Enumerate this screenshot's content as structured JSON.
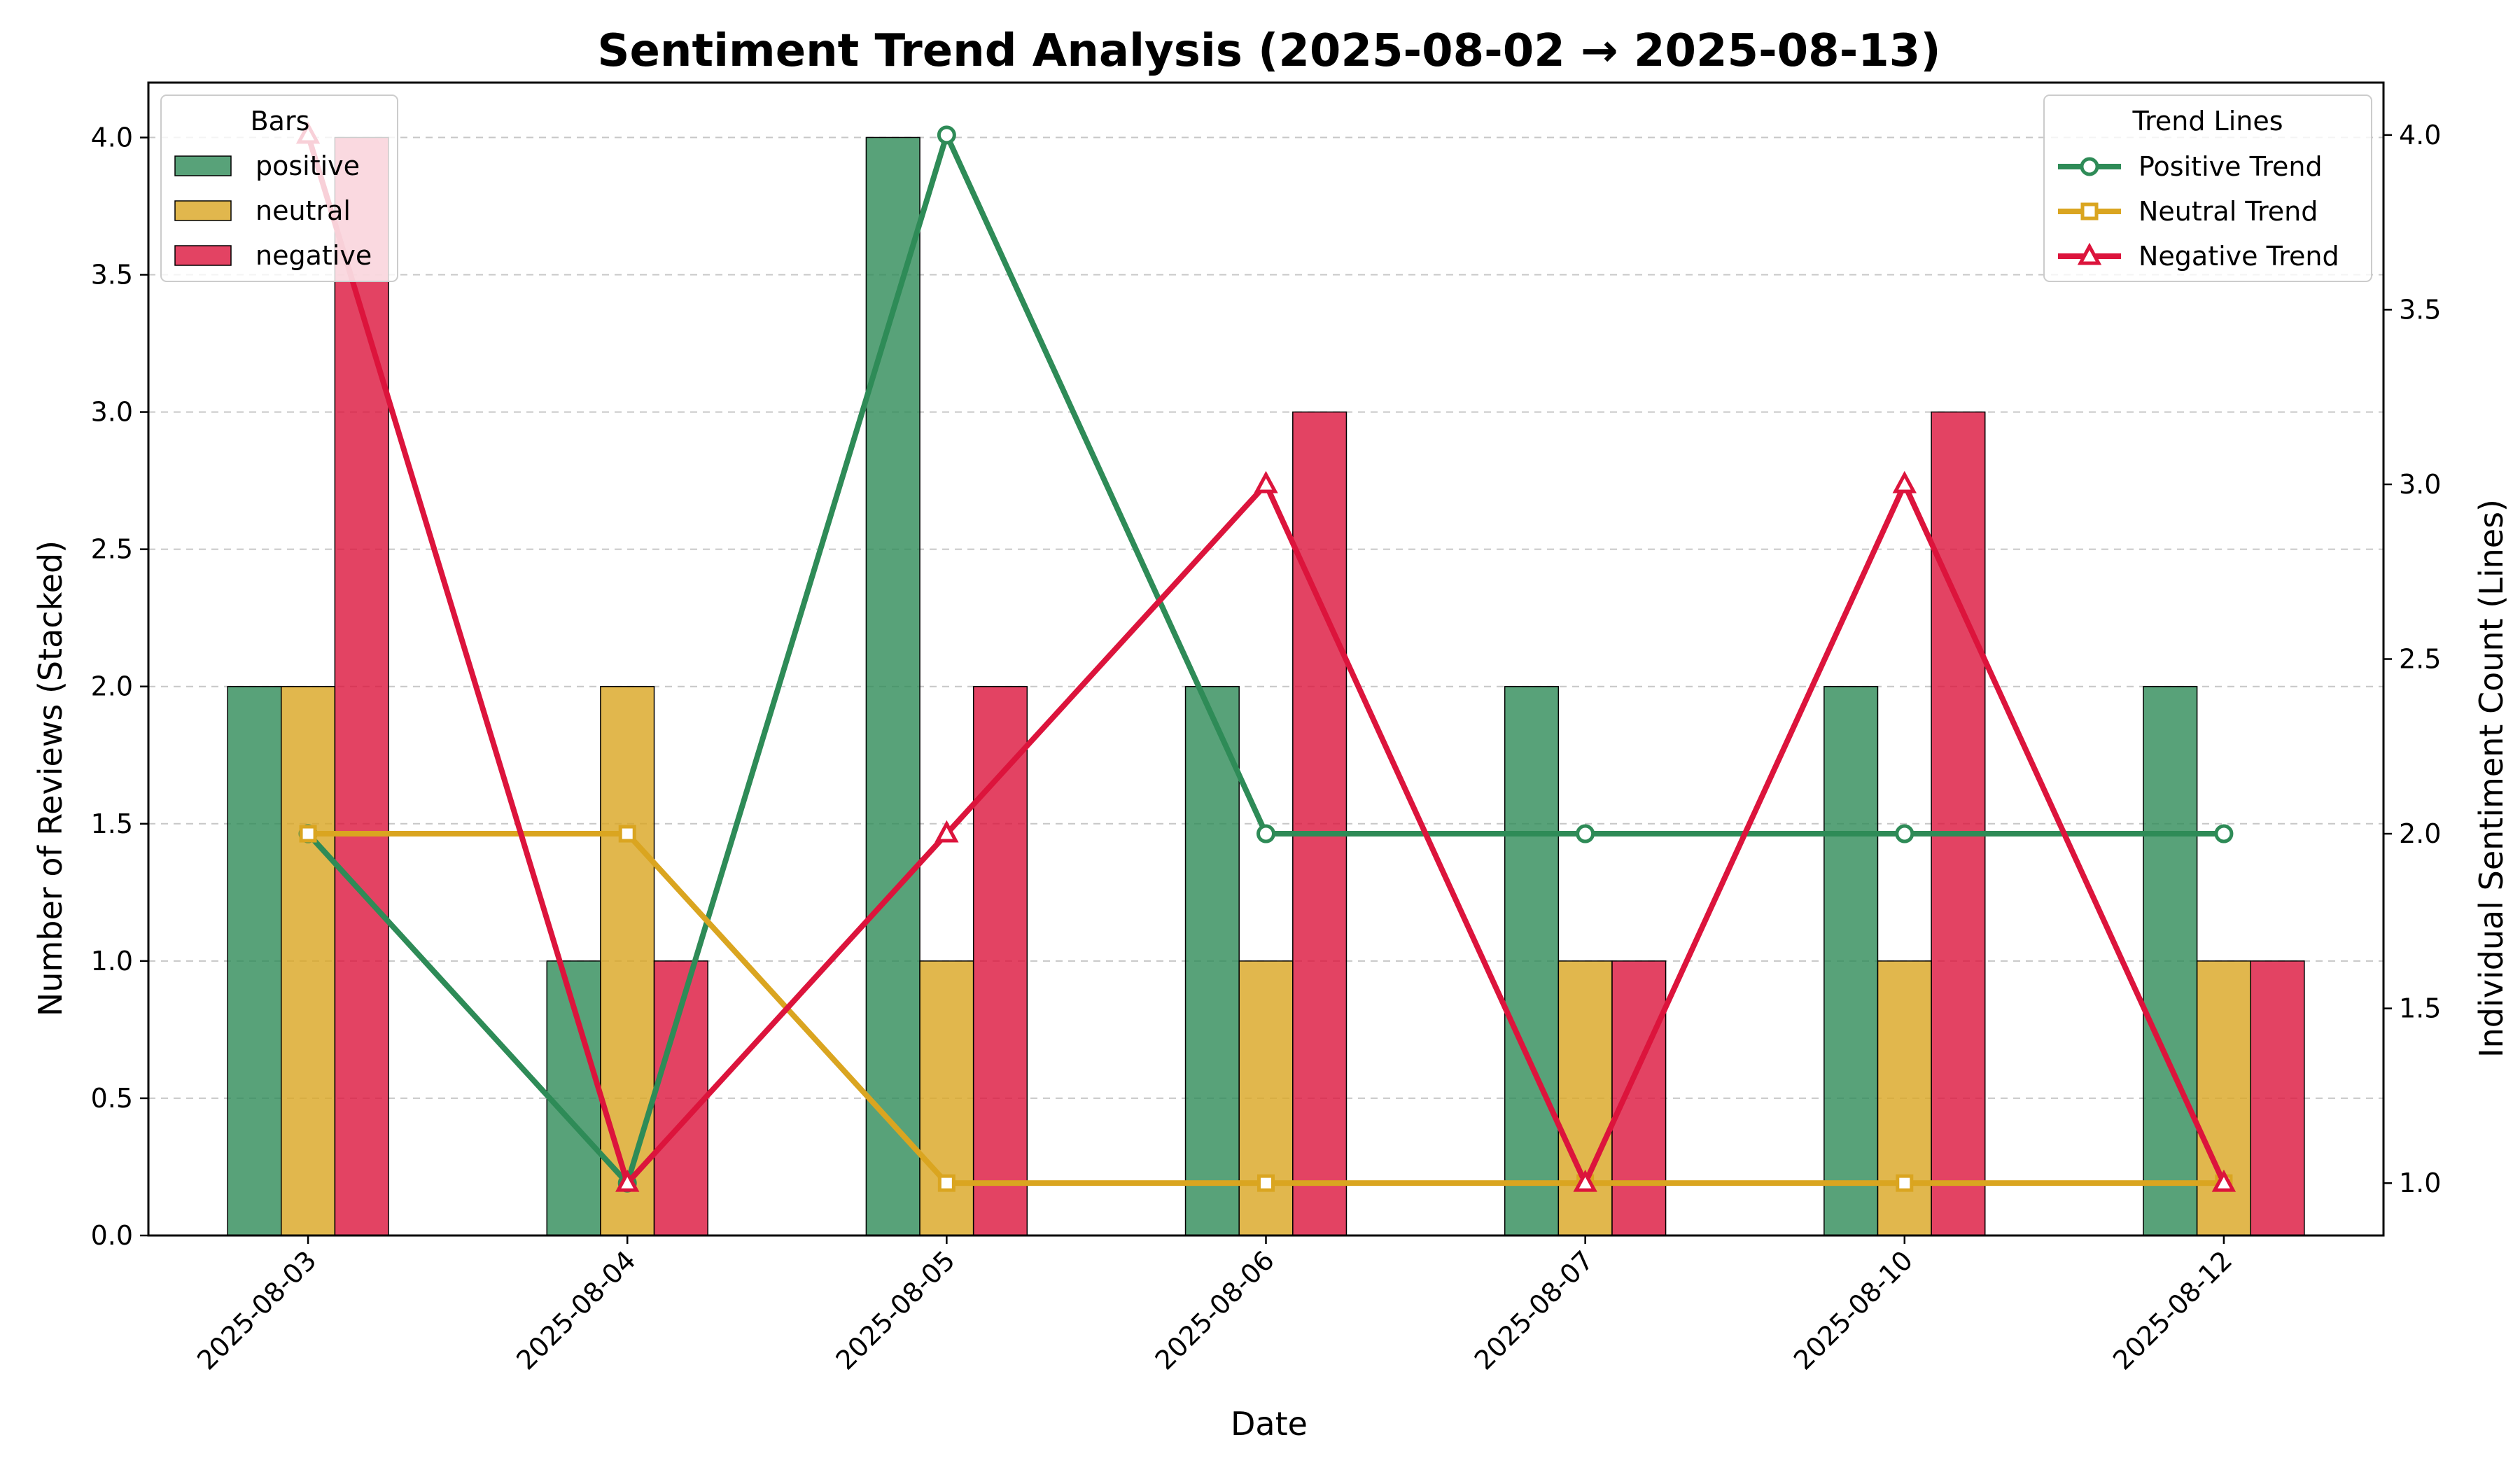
{
  "chart_data": {
    "type": "bar",
    "title": "Sentiment Trend Analysis (2025-08-02 → 2025-08-13)",
    "xlabel": "Date",
    "ylabel": "Number of Reviews (Stacked)",
    "y2label": "Individual Sentiment Count (Lines)",
    "categories": [
      "2025-08-03",
      "2025-08-04",
      "2025-08-05",
      "2025-08-06",
      "2025-08-07",
      "2025-08-10",
      "2025-08-12"
    ],
    "ylim": [
      0,
      4.2
    ],
    "y2lim": [
      0.85,
      4.15
    ],
    "yticks": [
      0.0,
      0.5,
      1.0,
      1.5,
      2.0,
      2.5,
      3.0,
      3.5,
      4.0
    ],
    "y2ticks": [
      1.0,
      1.5,
      2.0,
      2.5,
      3.0,
      3.5,
      4.0
    ],
    "grid": "horizontal dashed",
    "bar_legend": {
      "title": "Bars",
      "placement": "top-left",
      "entries": [
        "positive",
        "neutral",
        "negative"
      ]
    },
    "line_legend": {
      "title": "Trend Lines",
      "placement": "top-right",
      "entries": [
        "Positive Trend",
        "Neutral Trend",
        "Negative Trend"
      ]
    },
    "bar_series": [
      {
        "name": "positive",
        "color": "#2e8b57",
        "values": [
          2,
          1,
          4,
          2,
          2,
          2,
          2
        ]
      },
      {
        "name": "neutral",
        "color": "#daa520",
        "values": [
          2,
          2,
          1,
          1,
          1,
          1,
          1
        ]
      },
      {
        "name": "negative",
        "color": "#dc143c",
        "values": [
          4,
          1,
          2,
          3,
          1,
          3,
          1
        ]
      }
    ],
    "line_series": [
      {
        "name": "Positive Trend",
        "color": "#2e8b57",
        "marker": "circle",
        "values": [
          2,
          1,
          4,
          2,
          2,
          2,
          2
        ]
      },
      {
        "name": "Neutral Trend",
        "color": "#daa520",
        "marker": "square",
        "values": [
          2,
          2,
          1,
          1,
          1,
          1,
          1
        ]
      },
      {
        "name": "Negative Trend",
        "color": "#dc143c",
        "marker": "triangle",
        "values": [
          4,
          1,
          2,
          3,
          1,
          3,
          1
        ]
      }
    ]
  }
}
